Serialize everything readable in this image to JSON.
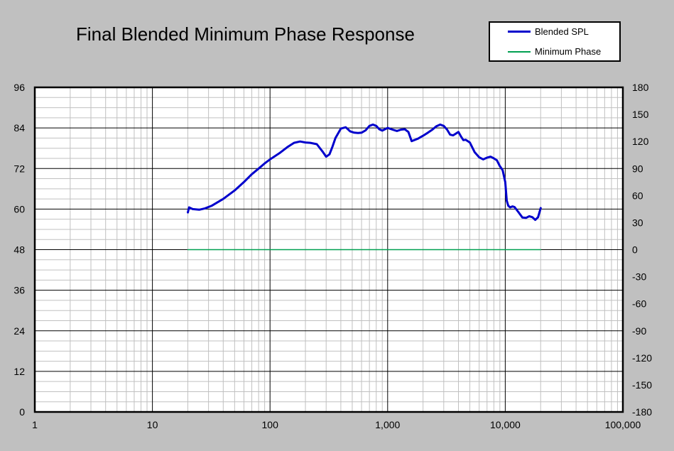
{
  "chart_data": {
    "type": "line",
    "title": "Final Blended Minimum Phase Response",
    "x_scale": "log",
    "xlim": [
      1,
      100000
    ],
    "x_ticks": [
      1,
      10,
      100,
      1000,
      10000,
      100000
    ],
    "x_tick_labels": [
      "1",
      "10",
      "100",
      "1,000",
      "10,000",
      "100,000"
    ],
    "ylim_left": [
      0,
      96
    ],
    "y_ticks_left": [
      "0",
      "12",
      "24",
      "36",
      "48",
      "60",
      "72",
      "84",
      "96"
    ],
    "ylim_right": [
      -180,
      180
    ],
    "y_ticks_right": [
      "-180",
      "-150",
      "-120",
      "-90",
      "-60",
      "-30",
      "0",
      "30",
      "60",
      "90",
      "120",
      "150",
      "180"
    ],
    "grid": true,
    "legend_position": "top-right",
    "series": [
      {
        "name": "Blended SPL",
        "axis": "left",
        "color": "#0000cc",
        "x": [
          20,
          20.5,
          22,
          25,
          28,
          32,
          40,
          50,
          60,
          70,
          80,
          90,
          100,
          120,
          140,
          160,
          180,
          200,
          220,
          250,
          280,
          300,
          320,
          340,
          360,
          400,
          440,
          480,
          520,
          560,
          600,
          650,
          700,
          750,
          800,
          850,
          900,
          1000,
          1100,
          1200,
          1300,
          1400,
          1500,
          1600,
          1800,
          2000,
          2200,
          2400,
          2600,
          2800,
          3000,
          3200,
          3400,
          3600,
          4000,
          4200,
          4400,
          4600,
          5000,
          5500,
          6000,
          6500,
          7000,
          7500,
          8000,
          8500,
          9000,
          9500,
          10000,
          10300,
          10600,
          11000,
          11500,
          12000,
          13000,
          14000,
          15000,
          16000,
          17000,
          18000,
          19000,
          20000
        ],
        "y": [
          59,
          60.5,
          60,
          59.8,
          60.2,
          61,
          63,
          65.5,
          68,
          70.3,
          72,
          73.5,
          74.7,
          76.5,
          78.3,
          79.6,
          80,
          79.7,
          79.6,
          79.2,
          77,
          75.5,
          76.2,
          78.5,
          81,
          83.8,
          84.2,
          83,
          82.6,
          82.5,
          82.6,
          83.3,
          84.6,
          85,
          84.6,
          83.6,
          83.2,
          84,
          83.5,
          83.1,
          83.5,
          83.6,
          82.8,
          80.1,
          80.8,
          81.7,
          82.6,
          83.5,
          84.5,
          85,
          84.6,
          83.5,
          82,
          81.8,
          82.8,
          81.5,
          80.4,
          80.5,
          79.7,
          76.8,
          75.3,
          74.7,
          75.2,
          75.5,
          75,
          74.4,
          72.7,
          71.5,
          68,
          62.5,
          61,
          60.5,
          60.8,
          60.6,
          59,
          57.5,
          57.4,
          57.9,
          57.6,
          56.8,
          57.6,
          60.3
        ]
      },
      {
        "name": "Minimum Phase",
        "axis": "right",
        "color": "#00a050",
        "x": [
          20,
          20000
        ],
        "y": [
          0,
          0
        ]
      }
    ]
  }
}
